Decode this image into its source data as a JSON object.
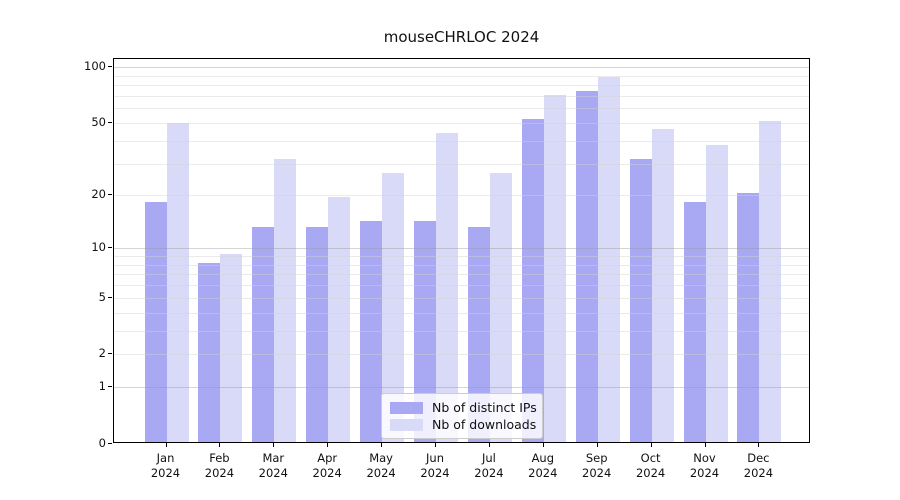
{
  "title": "mouseCHRLOC 2024",
  "chart_data": {
    "type": "bar",
    "title": "mouseCHRLOC 2024",
    "categories": [
      "Jan 2024",
      "Feb 2024",
      "Mar 2024",
      "Apr 2024",
      "May 2024",
      "Jun 2024",
      "Jul 2024",
      "Aug 2024",
      "Sep 2024",
      "Oct 2024",
      "Nov 2024",
      "Dec 2024"
    ],
    "series": [
      {
        "name": "Nb of distinct IPs",
        "color": "#a8a8f3",
        "values": [
          18,
          8,
          13,
          13,
          14,
          14,
          13,
          51,
          73,
          31,
          18,
          20
        ]
      },
      {
        "name": "Nb of downloads",
        "color": "#d9d9f8",
        "values": [
          49,
          9,
          31,
          19,
          26,
          43,
          26,
          69,
          86,
          45,
          37,
          50
        ]
      }
    ],
    "xlabel": "",
    "ylabel": "",
    "yscale": "log1p",
    "ylim": [
      0,
      110
    ],
    "ytick_labels": [
      0,
      1,
      2,
      5,
      10,
      20,
      50,
      100
    ],
    "major_gridlines": [
      1,
      10,
      100
    ],
    "minor_gridlines": [
      2,
      3,
      4,
      5,
      6,
      7,
      8,
      9,
      20,
      30,
      40,
      50,
      60,
      70,
      80,
      90
    ],
    "grid": true,
    "legend_position": "lower center"
  },
  "legend": {
    "items": [
      {
        "label": "Nb of distinct IPs",
        "color": "#a8a8f3"
      },
      {
        "label": "Nb of downloads",
        "color": "#d9d9f8"
      }
    ]
  }
}
